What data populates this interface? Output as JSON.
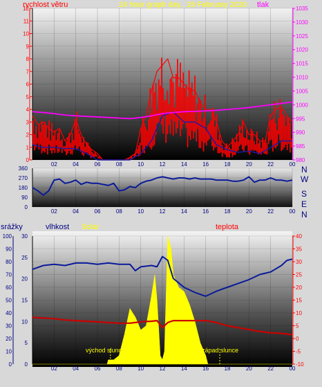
{
  "header": {
    "wind_label": "rychlost větru",
    "title": "24 hour graph day . 26 February 2020",
    "pressure_label": "tlak",
    "rain_label": "srážky",
    "humidity_label": "vlhkost",
    "solar_label": "Solar",
    "temperature_label": "teplota"
  },
  "compass": [
    "N",
    "W",
    "S",
    "E",
    "N"
  ],
  "annotations": {
    "sunrise": "východ slunce",
    "sunset": "západ slunce"
  },
  "colors": {
    "wind": "#ff0000",
    "wind_avg": "#1a1aa8",
    "pressure": "#ff00ff",
    "direction": "#0a1a9a",
    "humidity": "#0a1a9a",
    "temperature": "#cc0000",
    "solar": "#ffff00",
    "axis_left": "#ff0000",
    "axis_rain": "#1a1a1a",
    "axis_pressure": "#ff00ff"
  },
  "chart_data": [
    {
      "type": "line",
      "x_ticks": [
        "02",
        "04",
        "06",
        "08",
        "10",
        "12",
        "14",
        "16",
        "18",
        "20",
        "22",
        "00"
      ],
      "y_left": {
        "label": "rychlost větru",
        "range": [
          0,
          12
        ],
        "ticks": [
          0,
          1,
          2,
          3,
          4,
          5,
          6,
          7,
          8,
          9,
          10,
          11,
          12
        ]
      },
      "y_right": {
        "label": "tlak",
        "range": [
          980,
          1035
        ],
        "ticks": [
          980,
          985,
          990,
          995,
          1000,
          1005,
          1010,
          1015,
          1020,
          1025,
          1030,
          1035
        ]
      },
      "series": [
        {
          "name": "rychlost větru",
          "axis": "left",
          "x": [
            0,
            0.5,
            1,
            1.5,
            2,
            2.5,
            3,
            3.5,
            4,
            4.5,
            5,
            5.5,
            6,
            6.5,
            7,
            7.5,
            8,
            8.5,
            9,
            9.5,
            10,
            10.5,
            11,
            11.5,
            12,
            12.5,
            13,
            13.5,
            14,
            14.5,
            15,
            15.5,
            16,
            16.5,
            17,
            17.5,
            18,
            18.5,
            19,
            19.5,
            20,
            20.5,
            21,
            21.5,
            22,
            22.5,
            23,
            23.5,
            24
          ],
          "y": [
            3.5,
            2.8,
            3.0,
            2.5,
            2.2,
            2.5,
            1.5,
            2.0,
            3.2,
            2.0,
            1.2,
            0.8,
            0.5,
            0,
            0,
            0,
            0,
            0,
            0.2,
            0.5,
            2.5,
            3.5,
            5.5,
            7.0,
            7.5,
            8.0,
            6.5,
            6.5,
            6.0,
            5.5,
            5.5,
            4.5,
            4.0,
            4.0,
            3.0,
            1.5,
            1.0,
            1.5,
            2.0,
            3.0,
            2.0,
            2.0,
            1.5,
            1.5,
            3.5,
            4.0,
            4.2,
            3.5,
            3.0
          ]
        },
        {
          "name": "průměr",
          "axis": "left",
          "x": [
            0,
            1,
            2,
            3,
            4,
            5,
            6,
            7,
            8,
            9,
            10,
            11,
            12,
            13,
            14,
            15,
            16,
            17,
            18,
            19,
            20,
            21,
            22,
            23,
            24
          ],
          "y": [
            1.2,
            1.0,
            1.0,
            0.9,
            0.9,
            0.5,
            0,
            0,
            0,
            0,
            0.5,
            1.5,
            3.5,
            3.8,
            3.0,
            3.0,
            2.5,
            1.2,
            0.8,
            0.6,
            0.7,
            0.5,
            1.0,
            1.5,
            1.5
          ]
        },
        {
          "name": "tlak",
          "axis": "right",
          "x": [
            0,
            1,
            2,
            3,
            4,
            5,
            6,
            7,
            8,
            9,
            10,
            11,
            12,
            13,
            14,
            15,
            16,
            17,
            18,
            19,
            20,
            21,
            22,
            23,
            24
          ],
          "y": [
            997.5,
            997.2,
            996.8,
            996.3,
            996,
            995.8,
            995.6,
            995.4,
            995.2,
            995,
            995.4,
            996,
            996.8,
            997.2,
            997.5,
            997.6,
            997.8,
            998,
            998.3,
            998.6,
            999,
            999.5,
            1000,
            1000.5,
            1001
          ]
        }
      ]
    },
    {
      "type": "line",
      "x_ticks": [
        "02",
        "04",
        "06",
        "08",
        "10",
        "12",
        "14",
        "16",
        "18",
        "20",
        "22",
        "00"
      ],
      "y_left": {
        "range": [
          0,
          360
        ],
        "ticks": [
          0,
          90,
          180,
          270,
          360
        ]
      },
      "series": [
        {
          "name": "směr větru",
          "x": [
            0,
            0.5,
            1,
            1.5,
            2,
            2.5,
            3,
            3.5,
            4,
            4.5,
            5,
            5.5,
            6,
            6.5,
            7,
            7.5,
            8,
            8.5,
            9,
            9.5,
            10,
            10.5,
            11,
            11.5,
            12,
            12.5,
            13,
            13.5,
            14,
            14.5,
            15,
            15.5,
            16,
            16.5,
            17,
            17.5,
            18,
            18.5,
            19,
            19.5,
            20,
            20.5,
            21,
            21.5,
            22,
            22.5,
            23,
            23.5,
            24
          ],
          "y": [
            180,
            150,
            110,
            150,
            250,
            260,
            220,
            230,
            250,
            210,
            230,
            220,
            220,
            210,
            200,
            220,
            150,
            160,
            190,
            180,
            220,
            240,
            250,
            270,
            280,
            270,
            260,
            270,
            270,
            260,
            270,
            260,
            260,
            260,
            250,
            250,
            250,
            240,
            240,
            250,
            280,
            230,
            250,
            250,
            270,
            250,
            250,
            240,
            250
          ]
        }
      ]
    },
    {
      "type": "line",
      "x_ticks": [
        "02",
        "04",
        "06",
        "08",
        "10",
        "12",
        "14",
        "16",
        "18",
        "20",
        "22",
        "00"
      ],
      "y_left": {
        "label": "srážky",
        "range": [
          0,
          100
        ],
        "ticks": [
          0,
          10,
          20,
          30,
          40,
          50,
          60,
          70,
          80,
          90,
          100
        ]
      },
      "y_left2": {
        "label": "vlhkost",
        "range": [
          0,
          30
        ],
        "ticks": [
          0,
          5,
          10,
          15,
          20,
          25,
          30
        ]
      },
      "y_right": {
        "label": "teplota",
        "range": [
          -10,
          40
        ],
        "ticks": [
          -10,
          -5,
          0,
          5,
          10,
          15,
          20,
          25,
          30,
          35,
          40
        ]
      },
      "series": [
        {
          "name": "vlhkost",
          "axis": "left",
          "x": [
            0,
            1,
            2,
            3,
            4,
            5,
            6,
            7,
            8,
            9,
            9.5,
            10,
            11,
            11.5,
            12,
            12.5,
            13,
            14,
            15,
            16,
            17,
            18,
            19,
            20,
            21,
            22,
            23,
            23.5,
            24
          ],
          "y": [
            74,
            77,
            78,
            77,
            79,
            79,
            78,
            79,
            78,
            78,
            73,
            76,
            77,
            76,
            84,
            81,
            67,
            60,
            56,
            53,
            57,
            60,
            63,
            66,
            70,
            72,
            77,
            81,
            82
          ]
        },
        {
          "name": "teplota",
          "axis": "left",
          "x": [
            0,
            1,
            2,
            3,
            4,
            5,
            6,
            7,
            8,
            9,
            10,
            11,
            11.5,
            12,
            12.5,
            13,
            14,
            15,
            16,
            17,
            18,
            19,
            20,
            21,
            22,
            23,
            24
          ],
          "y": [
            36.5,
            36.0,
            35.5,
            34.5,
            34.0,
            33.5,
            33.0,
            32.5,
            32.0,
            32.0,
            33.0,
            33.5,
            34.0,
            28.5,
            32.5,
            34.0,
            34.0,
            34.0,
            34.0,
            32.5,
            30.0,
            28.5,
            27.0,
            25.5,
            24.5,
            24.0,
            23.0
          ]
        },
        {
          "name": "Solar",
          "axis": "left",
          "x": [
            0,
            6.9,
            7.0,
            7.5,
            8.0,
            8.5,
            9.0,
            9.5,
            10.0,
            10.5,
            11.0,
            11.3,
            11.5,
            11.8,
            12.0,
            12.2,
            12.5,
            12.8,
            13.0,
            13.5,
            14.0,
            14.5,
            15.0,
            15.5,
            16.0,
            16.2,
            24
          ],
          "y": [
            0,
            0,
            1,
            1,
            2,
            7,
            13,
            11,
            8,
            9,
            16,
            21,
            15,
            2,
            1,
            3,
            30,
            27,
            21,
            18,
            17,
            14,
            10,
            5,
            2,
            0,
            0
          ]
        }
      ]
    }
  ]
}
